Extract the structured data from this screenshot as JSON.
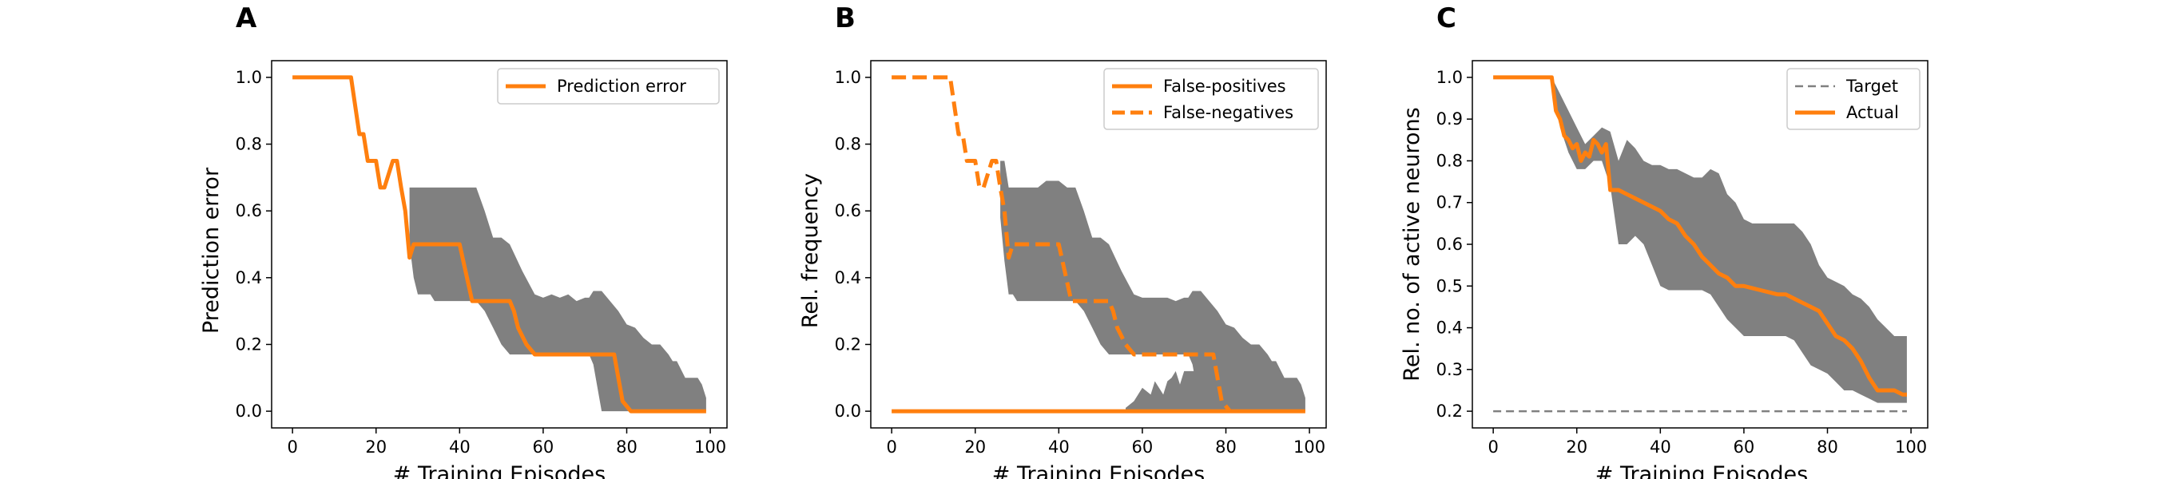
{
  "figure": {
    "panels": [
      {
        "letter": "A"
      },
      {
        "letter": "B"
      },
      {
        "letter": "C"
      }
    ]
  },
  "colors": {
    "orange": "#ff7f0e",
    "band": "#808080",
    "target": "#808080"
  },
  "chart_data": [
    {
      "type": "line",
      "panel": "A",
      "xlabel": "# Training Episodes",
      "ylabel": "Prediction error",
      "xlim": [
        -5,
        104
      ],
      "ylim": [
        -0.05,
        1.05
      ],
      "xticks": [
        0,
        20,
        40,
        60,
        80,
        100
      ],
      "yticks": [
        0.0,
        0.2,
        0.4,
        0.6,
        0.8,
        1.0
      ],
      "legend_position": "top-right",
      "bands": [
        {
          "x": [
            28,
            29,
            30,
            33,
            34,
            35,
            36,
            37,
            38,
            40,
            42,
            44,
            46,
            48,
            50,
            52,
            55,
            58,
            60,
            62,
            64,
            66,
            68,
            70,
            71,
            72,
            74,
            76,
            78,
            80,
            82,
            84,
            86,
            88,
            90,
            91,
            92,
            94,
            96,
            97,
            98,
            99
          ],
          "upper": [
            0.67,
            0.67,
            0.67,
            0.67,
            0.67,
            0.67,
            0.67,
            0.67,
            0.67,
            0.67,
            0.67,
            0.67,
            0.6,
            0.52,
            0.52,
            0.5,
            0.42,
            0.35,
            0.34,
            0.35,
            0.34,
            0.35,
            0.33,
            0.34,
            0.34,
            0.36,
            0.36,
            0.33,
            0.3,
            0.26,
            0.25,
            0.22,
            0.2,
            0.2,
            0.17,
            0.15,
            0.15,
            0.1,
            0.1,
            0.1,
            0.08,
            0.04
          ],
          "lower": [
            0.5,
            0.4,
            0.35,
            0.35,
            0.33,
            0.33,
            0.33,
            0.33,
            0.33,
            0.33,
            0.33,
            0.33,
            0.3,
            0.25,
            0.2,
            0.17,
            0.17,
            0.17,
            0.17,
            0.17,
            0.17,
            0.17,
            0.17,
            0.17,
            0.17,
            0.14,
            0.0,
            0.0,
            0.0,
            0.0,
            0.0,
            0.0,
            0.0,
            0.0,
            0.0,
            0.0,
            0.0,
            0.0,
            0.0,
            0.0,
            0.0,
            0.0
          ]
        }
      ],
      "series": [
        {
          "name": "Prediction error",
          "style": "solid",
          "x": [
            0,
            14,
            16,
            17,
            18,
            20,
            21,
            22,
            24,
            25,
            26,
            27,
            28,
            29,
            30,
            40,
            43,
            52,
            53,
            54,
            56,
            58,
            77,
            78,
            79,
            81,
            99
          ],
          "y": [
            1.0,
            1.0,
            0.83,
            0.83,
            0.75,
            0.75,
            0.67,
            0.67,
            0.75,
            0.75,
            0.67,
            0.6,
            0.46,
            0.5,
            0.5,
            0.5,
            0.33,
            0.33,
            0.3,
            0.25,
            0.2,
            0.17,
            0.17,
            0.1,
            0.03,
            0.0,
            0.0
          ]
        }
      ]
    },
    {
      "type": "line",
      "panel": "B",
      "xlabel": "# Training Episodes",
      "ylabel": "Rel. frequency",
      "xlim": [
        -5,
        104
      ],
      "ylim": [
        -0.05,
        1.05
      ],
      "xticks": [
        0,
        20,
        40,
        60,
        80,
        100
      ],
      "yticks": [
        0.0,
        0.2,
        0.4,
        0.6,
        0.8,
        1.0
      ],
      "legend_position": "top-right",
      "bands": [
        {
          "x": [
            26,
            27,
            28,
            29,
            30,
            33,
            35,
            37,
            38,
            40,
            42,
            44,
            46,
            48,
            50,
            52,
            55,
            58,
            60,
            62,
            64,
            66,
            68,
            70,
            71,
            72,
            74,
            76,
            78,
            80,
            82,
            84,
            86,
            88,
            90,
            91,
            92,
            94,
            96,
            97,
            98,
            99
          ],
          "upper": [
            0.75,
            0.75,
            0.67,
            0.67,
            0.67,
            0.67,
            0.67,
            0.69,
            0.69,
            0.69,
            0.67,
            0.67,
            0.6,
            0.52,
            0.52,
            0.5,
            0.42,
            0.35,
            0.34,
            0.34,
            0.34,
            0.34,
            0.33,
            0.34,
            0.34,
            0.36,
            0.36,
            0.33,
            0.3,
            0.26,
            0.25,
            0.22,
            0.2,
            0.2,
            0.17,
            0.15,
            0.15,
            0.1,
            0.1,
            0.1,
            0.08,
            0.04
          ],
          "lower": [
            0.58,
            0.45,
            0.35,
            0.35,
            0.33,
            0.33,
            0.33,
            0.33,
            0.33,
            0.33,
            0.33,
            0.33,
            0.3,
            0.25,
            0.2,
            0.17,
            0.17,
            0.17,
            0.17,
            0.17,
            0.17,
            0.17,
            0.17,
            0.17,
            0.17,
            0.14,
            0.0,
            0.0,
            0.0,
            0.0,
            0.0,
            0.0,
            0.0,
            0.0,
            0.0,
            0.0,
            0.0,
            0.0,
            0.0,
            0.0,
            0.0,
            0.0
          ]
        },
        {
          "x": [
            56,
            58,
            60,
            62,
            63,
            64,
            65,
            66,
            67,
            68,
            69,
            70,
            72,
            74,
            76,
            78,
            80,
            82,
            84,
            86,
            88,
            90,
            92,
            94,
            96,
            98,
            99
          ],
          "upper": [
            0.01,
            0.03,
            0.07,
            0.05,
            0.09,
            0.07,
            0.05,
            0.09,
            0.1,
            0.12,
            0.08,
            0.12,
            0.12,
            0.12,
            0.14,
            0.16,
            0.1,
            0.1,
            0.06,
            0.04,
            0.04,
            0.02,
            0.02,
            0.02,
            0.01,
            0.01,
            0.0
          ],
          "lower": [
            0.0,
            0.0,
            0.0,
            0.0,
            0.0,
            0.0,
            0.0,
            0.0,
            0.0,
            0.0,
            0.0,
            0.0,
            0.0,
            0.0,
            0.0,
            0.0,
            0.0,
            0.0,
            0.0,
            0.0,
            0.0,
            0.0,
            0.0,
            0.0,
            0.0,
            0.0,
            0.0
          ]
        }
      ],
      "series": [
        {
          "name": "False-positives",
          "style": "solid",
          "x": [
            0,
            99
          ],
          "y": [
            0.0,
            0.0
          ]
        },
        {
          "name": "False-negatives",
          "style": "dashed",
          "x": [
            0,
            14,
            16,
            17,
            18,
            20,
            21,
            22,
            24,
            25,
            26,
            27,
            28,
            29,
            30,
            40,
            43,
            52,
            53,
            54,
            56,
            58,
            77,
            78,
            79,
            81
          ],
          "y": [
            1.0,
            1.0,
            0.83,
            0.83,
            0.75,
            0.75,
            0.67,
            0.67,
            0.75,
            0.75,
            0.67,
            0.6,
            0.46,
            0.5,
            0.5,
            0.5,
            0.33,
            0.33,
            0.3,
            0.25,
            0.2,
            0.17,
            0.17,
            0.1,
            0.03,
            0.0
          ]
        }
      ]
    },
    {
      "type": "line",
      "panel": "C",
      "xlabel": "# Training Episodes",
      "ylabel": "Rel. no. of active neurons",
      "xlim": [
        -5,
        104
      ],
      "ylim": [
        0.16,
        1.04
      ],
      "xticks": [
        0,
        20,
        40,
        60,
        80,
        100
      ],
      "yticks": [
        0.2,
        0.3,
        0.4,
        0.5,
        0.6,
        0.7,
        0.8,
        0.9,
        1.0
      ],
      "legend_position": "top-right",
      "bands": [
        {
          "x": [
            14,
            16,
            18,
            20,
            22,
            24,
            26,
            28,
            30,
            32,
            34,
            36,
            38,
            40,
            42,
            44,
            46,
            48,
            50,
            52,
            54,
            56,
            58,
            60,
            62,
            64,
            66,
            68,
            70,
            72,
            74,
            76,
            78,
            80,
            82,
            84,
            86,
            88,
            90,
            92,
            94,
            96,
            98,
            99
          ],
          "upper": [
            1.0,
            0.96,
            0.92,
            0.88,
            0.84,
            0.86,
            0.88,
            0.87,
            0.8,
            0.85,
            0.83,
            0.8,
            0.79,
            0.79,
            0.78,
            0.78,
            0.77,
            0.76,
            0.76,
            0.78,
            0.77,
            0.72,
            0.7,
            0.66,
            0.65,
            0.65,
            0.65,
            0.65,
            0.65,
            0.65,
            0.63,
            0.6,
            0.55,
            0.52,
            0.51,
            0.5,
            0.48,
            0.47,
            0.45,
            0.42,
            0.4,
            0.38,
            0.38,
            0.38
          ],
          "lower": [
            1.0,
            0.88,
            0.82,
            0.78,
            0.78,
            0.8,
            0.8,
            0.74,
            0.6,
            0.6,
            0.62,
            0.6,
            0.55,
            0.5,
            0.49,
            0.49,
            0.49,
            0.49,
            0.49,
            0.48,
            0.45,
            0.42,
            0.4,
            0.38,
            0.38,
            0.38,
            0.38,
            0.38,
            0.38,
            0.37,
            0.34,
            0.31,
            0.3,
            0.29,
            0.27,
            0.25,
            0.25,
            0.24,
            0.23,
            0.22,
            0.22,
            0.22,
            0.22,
            0.22
          ]
        }
      ],
      "series": [
        {
          "name": "Target",
          "style": "dashed",
          "x": [
            0,
            99
          ],
          "y": [
            0.2,
            0.2
          ]
        },
        {
          "name": "Actual",
          "style": "solid",
          "x": [
            0,
            14,
            15,
            16,
            17,
            18,
            19,
            20,
            21,
            22,
            23,
            24,
            25,
            26,
            27,
            28,
            30,
            32,
            34,
            36,
            38,
            40,
            42,
            44,
            46,
            48,
            50,
            52,
            54,
            56,
            58,
            60,
            64,
            68,
            70,
            72,
            74,
            76,
            78,
            80,
            82,
            84,
            86,
            88,
            90,
            92,
            94,
            96,
            98,
            99
          ],
          "y": [
            1.0,
            1.0,
            0.92,
            0.9,
            0.86,
            0.85,
            0.83,
            0.84,
            0.8,
            0.82,
            0.81,
            0.85,
            0.84,
            0.82,
            0.84,
            0.73,
            0.73,
            0.72,
            0.71,
            0.7,
            0.69,
            0.68,
            0.66,
            0.65,
            0.62,
            0.6,
            0.57,
            0.55,
            0.53,
            0.52,
            0.5,
            0.5,
            0.49,
            0.48,
            0.48,
            0.47,
            0.46,
            0.45,
            0.44,
            0.41,
            0.38,
            0.37,
            0.35,
            0.32,
            0.28,
            0.25,
            0.25,
            0.25,
            0.24,
            0.24
          ]
        }
      ]
    }
  ]
}
